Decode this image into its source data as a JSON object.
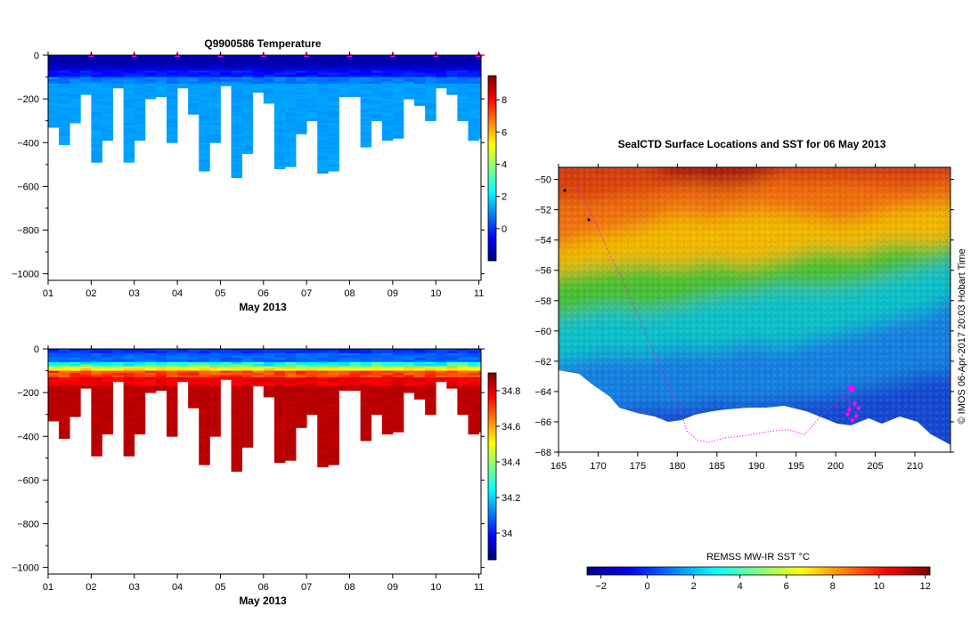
{
  "chart_data": [
    {
      "id": "temperature_profile",
      "type": "heatmap",
      "title": "Q9900586  Temperature",
      "xlabel": "May 2013",
      "ylabel": "",
      "x_ticks": [
        "01",
        "02",
        "03",
        "04",
        "05",
        "06",
        "07",
        "08",
        "09",
        "10",
        "11"
      ],
      "y_ticks": [
        "0",
        "−200",
        "−400",
        "−600",
        "−800",
        "−1000"
      ],
      "xlim": [
        1,
        11.05
      ],
      "ylim": [
        -1030,
        0
      ],
      "colorbar": {
        "ticks": [
          "0",
          "2",
          "4",
          "6",
          "8"
        ],
        "range": [
          -2,
          9.5
        ],
        "ramp": "jet"
      },
      "profile_days": [
        1.0,
        1.25,
        1.5,
        1.75,
        2.0,
        2.25,
        2.5,
        2.75,
        3.0,
        3.25,
        3.5,
        3.75,
        4.0,
        4.25,
        4.5,
        4.75,
        5.0,
        5.25,
        5.5,
        5.75,
        6.0,
        6.25,
        6.5,
        6.75,
        7.0,
        7.25,
        7.5,
        7.75,
        8.0,
        8.25,
        8.5,
        8.75,
        9.0,
        9.25,
        9.5,
        9.75,
        10.0,
        10.25,
        10.5,
        10.75,
        11.0
      ],
      "max_depth": [
        330,
        405,
        310,
        180,
        490,
        390,
        150,
        490,
        390,
        200,
        190,
        395,
        145,
        270,
        525,
        400,
        140,
        560,
        450,
        170,
        215,
        515,
        510,
        355,
        300,
        540,
        530,
        185,
        190,
        415,
        300,
        390,
        380,
        200,
        230,
        300,
        150,
        180,
        300,
        385,
        380
      ],
      "surface_marker_days": [
        2,
        3,
        4,
        5,
        6,
        7,
        8,
        9,
        10,
        11
      ]
    },
    {
      "id": "salinity_profile",
      "type": "heatmap",
      "title": "",
      "xlabel": "May 2013",
      "ylabel": "",
      "x_ticks": [
        "01",
        "02",
        "03",
        "04",
        "05",
        "06",
        "07",
        "08",
        "09",
        "10",
        "11"
      ],
      "y_ticks": [
        "0",
        "−200",
        "−400",
        "−600",
        "−800",
        "−1000"
      ],
      "xlim": [
        1,
        11.05
      ],
      "ylim": [
        -1030,
        0
      ],
      "colorbar": {
        "ticks": [
          "34",
          "34.2",
          "34.4",
          "34.6",
          "34.8"
        ],
        "range": [
          33.85,
          34.9
        ],
        "ramp": "jet"
      }
    },
    {
      "id": "sst_map",
      "type": "heatmap",
      "title": "SealCTD Surface Locations and SST for 06 May 2013",
      "xlabel": "",
      "ylabel": "",
      "x_ticks": [
        "165",
        "170",
        "175",
        "180",
        "185",
        "190",
        "195",
        "200",
        "205",
        "210"
      ],
      "y_ticks": [
        "−50",
        "−52",
        "−54",
        "−56",
        "−58",
        "−60",
        "−62",
        "−64",
        "−66",
        "−68"
      ],
      "xlim": [
        165,
        214.5
      ],
      "ylim": [
        -68,
        -49.2
      ],
      "side_label": "©  IMOS 06-Apr-2017 20:03 Hobart Time",
      "colorbar_title": "REMSS MW-IR SST °C",
      "colorbar": {
        "ticks": [
          "−2",
          "0",
          "2",
          "4",
          "6",
          "8",
          "10",
          "12"
        ],
        "range": [
          -2.6,
          12.2
        ],
        "ramp": "jet"
      },
      "track_lon": [
        167.0,
        168.3,
        169.3,
        170.5,
        171.5,
        172.8,
        173.8,
        175.0,
        176.0,
        177.2,
        178.3,
        179.3,
        180.0,
        180.6,
        181.2,
        182.5,
        184.0,
        186.0,
        188.0,
        190.0,
        192.0,
        194.0,
        196.0,
        197.5,
        198.5,
        199.5,
        200.2,
        200.8,
        201.2,
        201.6,
        201.9,
        202.1
      ],
      "track_lat": [
        -50.4,
        -51.3,
        -52.5,
        -53.8,
        -55.0,
        -56.3,
        -57.6,
        -58.9,
        -60.2,
        -61.5,
        -62.9,
        -64.0,
        -64.7,
        -65.6,
        -66.6,
        -67.2,
        -67.35,
        -67.05,
        -66.95,
        -66.8,
        -66.6,
        -66.5,
        -66.85,
        -66.0,
        -65.4,
        -65.0,
        -64.6,
        -64.4,
        -64.3,
        -64.6,
        -65.0,
        -65.3
      ],
      "surface_locations_lon": [
        201.5,
        202.1,
        202.6,
        202.9,
        202.4,
        201.7
      ],
      "surface_locations_lat": [
        -65.5,
        -65.9,
        -65.6,
        -65.1,
        -64.8,
        -65.2
      ],
      "current_location": [
        202.0,
        -63.8
      ]
    }
  ]
}
